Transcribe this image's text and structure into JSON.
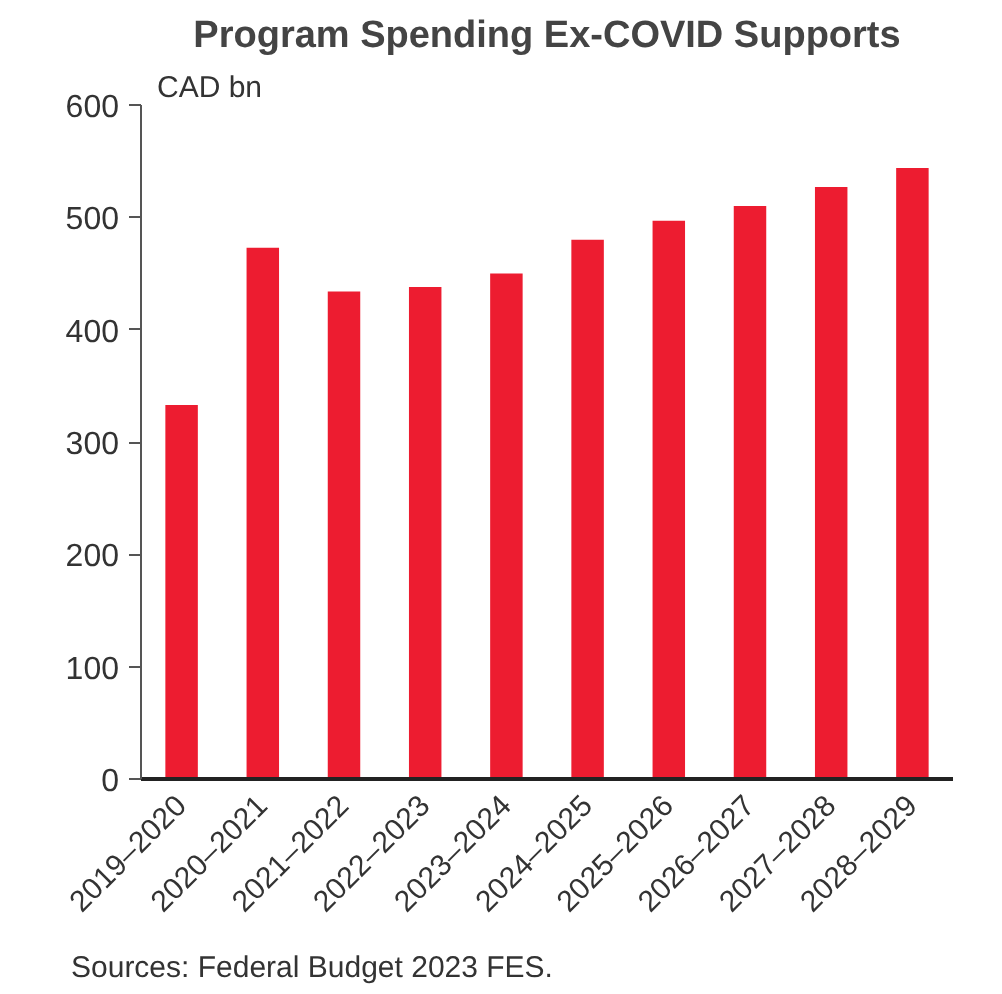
{
  "chart_data": {
    "type": "bar",
    "title": "Program Spending Ex-COVID Supports",
    "ylabel": "CAD bn",
    "categories": [
      "2019–2020",
      "2020–2021",
      "2021–2022",
      "2022–2023",
      "2023–2024",
      "2024–2025",
      "2025–2026",
      "2026–2027",
      "2027–2028",
      "2028–2029"
    ],
    "values": [
      333,
      473,
      434,
      438,
      450,
      480,
      497,
      510,
      527,
      544
    ],
    "color": "#ed1c30",
    "ylim": [
      0,
      600
    ],
    "yticks": [
      0,
      100,
      200,
      300,
      400,
      500,
      600
    ],
    "grid": false,
    "annotations": [
      "Sources: Federal Budget 2023 FES."
    ]
  }
}
